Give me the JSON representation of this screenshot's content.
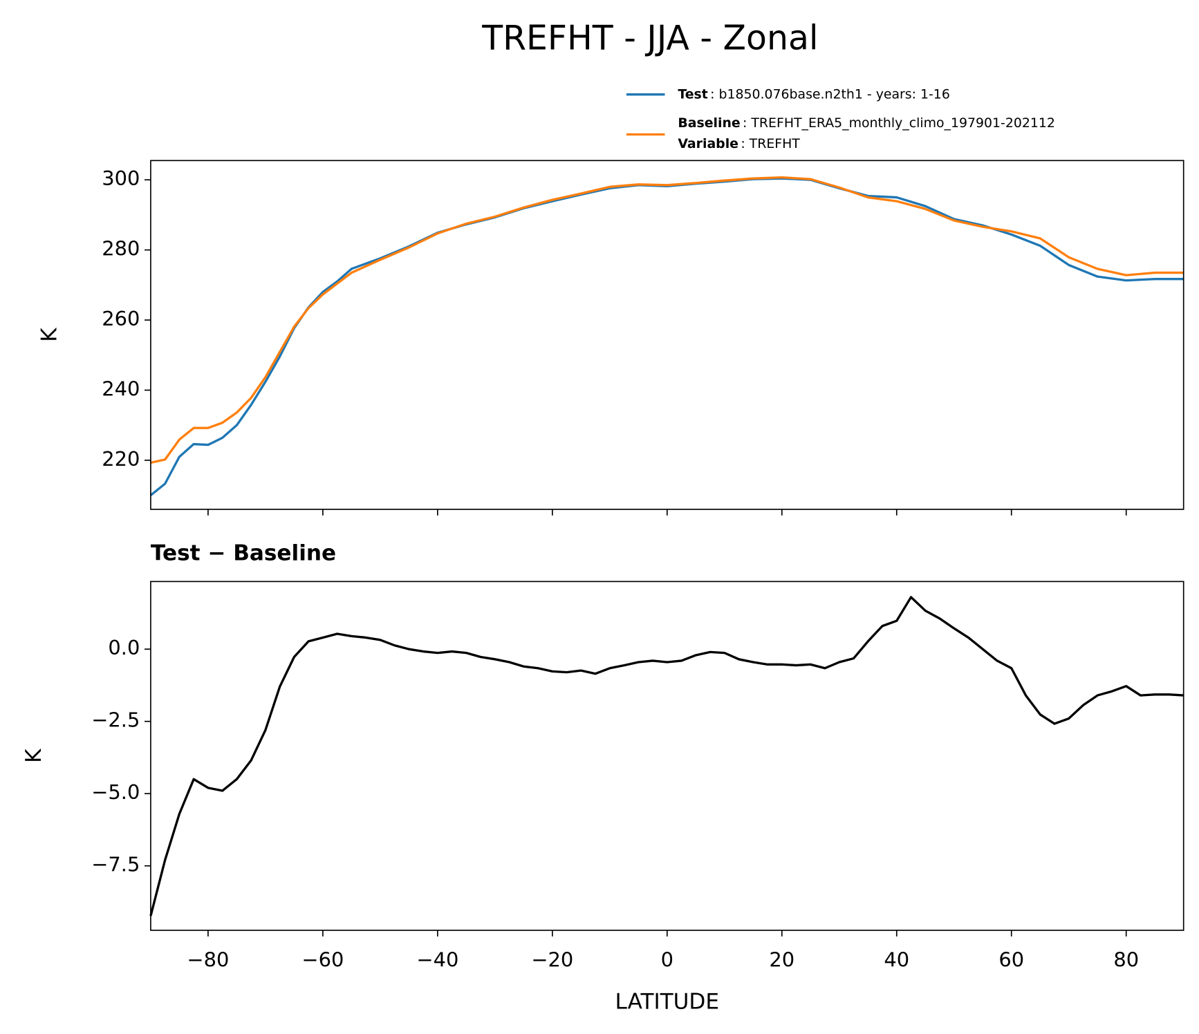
{
  "title": "TREFHT - JJA - Zonal",
  "chart_data": [
    {
      "type": "line",
      "ylabel": "K",
      "xlim": [
        -90,
        90
      ],
      "ylim": [
        206,
        305.5
      ],
      "xticks": [
        -80,
        -60,
        -40,
        -20,
        0,
        20,
        40,
        60,
        80
      ],
      "xtick_labels": false,
      "yticks": [
        220,
        240,
        260,
        280,
        300
      ],
      "grid": false,
      "x": [
        -90,
        -87.5,
        -85,
        -82.5,
        -80,
        -77.5,
        -75,
        -72.5,
        -70,
        -67.5,
        -65,
        -62.5,
        -60,
        -57.5,
        -55,
        -50,
        -45,
        -40,
        -35,
        -30,
        -25,
        -20,
        -15,
        -10,
        -5,
        0,
        5,
        10,
        15,
        20,
        25,
        30,
        35,
        40,
        45,
        50,
        55,
        60,
        65,
        70,
        75,
        80,
        85,
        90
      ],
      "series": [
        {
          "name": "Test",
          "legend_text": ": b1850.076base.n2th1 - years: 1-16",
          "color": "#1f77b4",
          "values": [
            210,
            213.3,
            221,
            224.6,
            224.4,
            226.4,
            230,
            235.8,
            242.4,
            249.6,
            257.7,
            263.6,
            268,
            271,
            274.6,
            277.6,
            281,
            284.9,
            287.3,
            289.3,
            291.9,
            293.9,
            295.8,
            297.6,
            298.5,
            298.2,
            298.9,
            299.5,
            300.2,
            300.4,
            300,
            297.6,
            295.4,
            295,
            292.5,
            288.8,
            287,
            284.4,
            281.2,
            275.7,
            272.4,
            271.3,
            271.7,
            271.7
          ]
        },
        {
          "name": "Baseline",
          "legend_text": ": TREFHT_ERA5_monthly_climo_197901-202112",
          "color": "#ff7f0e",
          "values": [
            219.3,
            220.2,
            225.9,
            229.2,
            229.2,
            230.7,
            233.6,
            237.8,
            243.7,
            250.9,
            258.1,
            263.4,
            267.3,
            270.4,
            273.5,
            277.2,
            280.7,
            284.7,
            287.5,
            289.5,
            292.1,
            294.3,
            296.1,
            298,
            298.7,
            298.5,
            299.1,
            299.8,
            300.4,
            300.7,
            300.2,
            297.8,
            295,
            293.9,
            291.7,
            288.4,
            286.6,
            285.3,
            283.3,
            277.9,
            274.6,
            272.8,
            273.5,
            273.5
          ]
        }
      ],
      "legend_note": {
        "name": "Variable",
        "text": ": TREFHT"
      }
    },
    {
      "type": "line",
      "title": "Test − Baseline",
      "xlabel": "LATITUDE",
      "ylabel": "K",
      "xlim": [
        -90,
        90
      ],
      "ylim": [
        -9.73,
        2.34
      ],
      "grid": false,
      "xticks": [
        {
          "value": -80,
          "label": "−80"
        },
        {
          "value": -60,
          "label": "−60"
        },
        {
          "value": -40,
          "label": "−40"
        },
        {
          "value": -20,
          "label": "−20"
        },
        0,
        20,
        40,
        60,
        80
      ],
      "yticks": [
        {
          "value": -7.5,
          "label": "−7.5"
        },
        {
          "value": -5,
          "label": "−5.0"
        },
        {
          "value": -2.5,
          "label": "−2.5"
        },
        {
          "value": 0,
          "label": "0.0"
        }
      ],
      "x": [
        -90,
        -87.5,
        -85,
        -82.5,
        -80,
        -77.5,
        -75,
        -72.5,
        -70,
        -67.5,
        -65,
        -62.5,
        -60,
        -57.5,
        -55,
        -52.5,
        -50,
        -47.5,
        -45,
        -42.5,
        -40,
        -37.5,
        -35,
        -32.5,
        -30,
        -27.5,
        -25,
        -22.5,
        -20,
        -17.5,
        -15,
        -12.5,
        -10,
        -7.5,
        -5,
        -2.5,
        0,
        2.5,
        5,
        7.5,
        10,
        12.5,
        15,
        17.5,
        20,
        22.5,
        25,
        27.5,
        30,
        32.5,
        35,
        37.5,
        40,
        42.5,
        45,
        47.5,
        50,
        52.5,
        55,
        57.5,
        60,
        62.5,
        65,
        67.5,
        70,
        72.5,
        75,
        77.5,
        80,
        82.5,
        85,
        87.5,
        90
      ],
      "series": [
        {
          "color": "#000000",
          "values": [
            -9.23,
            -7.3,
            -5.7,
            -4.5,
            -4.8,
            -4.9,
            -4.5,
            -3.85,
            -2.8,
            -1.3,
            -0.27,
            0.27,
            0.4,
            0.53,
            0.45,
            0.4,
            0.32,
            0.13,
            0,
            -0.08,
            -0.13,
            -0.08,
            -0.13,
            -0.27,
            -0.35,
            -0.45,
            -0.6,
            -0.66,
            -0.77,
            -0.8,
            -0.74,
            -0.85,
            -0.66,
            -0.56,
            -0.45,
            -0.4,
            -0.45,
            -0.4,
            -0.21,
            -0.1,
            -0.13,
            -0.35,
            -0.45,
            -0.53,
            -0.53,
            -0.56,
            -0.53,
            -0.66,
            -0.45,
            -0.32,
            0.27,
            0.8,
            0.98,
            1.8,
            1.33,
            1.06,
            0.72,
            0.4,
            0,
            -0.4,
            -0.66,
            -1.6,
            -2.26,
            -2.58,
            -2.4,
            -1.94,
            -1.6,
            -1.46,
            -1.28,
            -1.6,
            -1.57,
            -1.57,
            -1.6
          ]
        }
      ]
    }
  ]
}
